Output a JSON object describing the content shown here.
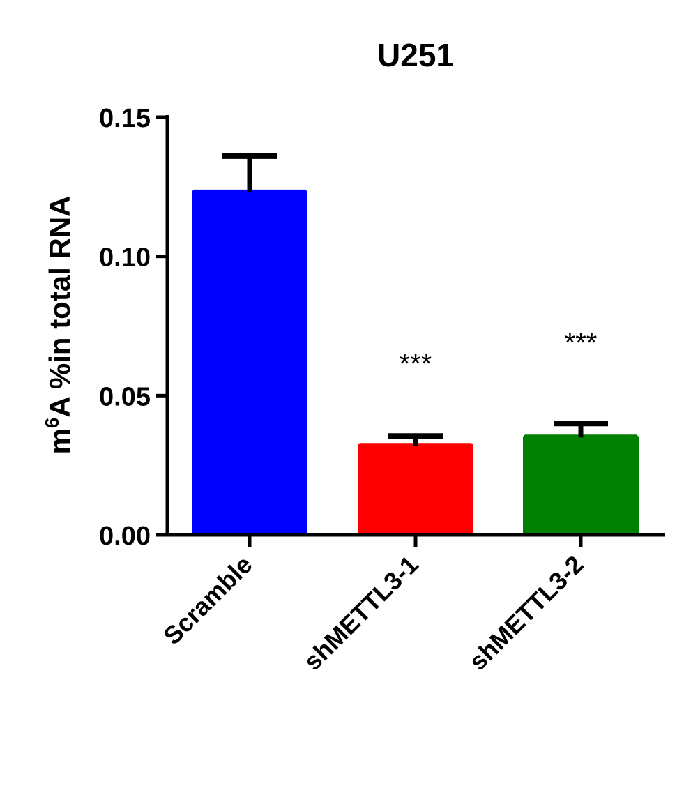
{
  "chart_data": {
    "type": "bar",
    "title": "U251",
    "xlabel": "",
    "ylabel_main": "A %in total RNA",
    "ylabel_prefix": "m",
    "ylabel_superscript": "6",
    "ylim": [
      0,
      0.15
    ],
    "yticks": [
      "0.00",
      "0.05",
      "0.10",
      "0.15"
    ],
    "ytick_values": [
      0,
      0.05,
      0.1,
      0.15
    ],
    "categories": [
      "Scramble",
      "shMETTL3-1",
      "shMETTL3-2"
    ],
    "values": [
      0.124,
      0.033,
      0.036
    ],
    "error": [
      0.012,
      0.0025,
      0.004
    ],
    "colors": [
      "#0000ff",
      "#ff0000",
      "#008000"
    ],
    "annotations": [
      "",
      "***",
      "***"
    ],
    "grid": false,
    "legend": null
  }
}
